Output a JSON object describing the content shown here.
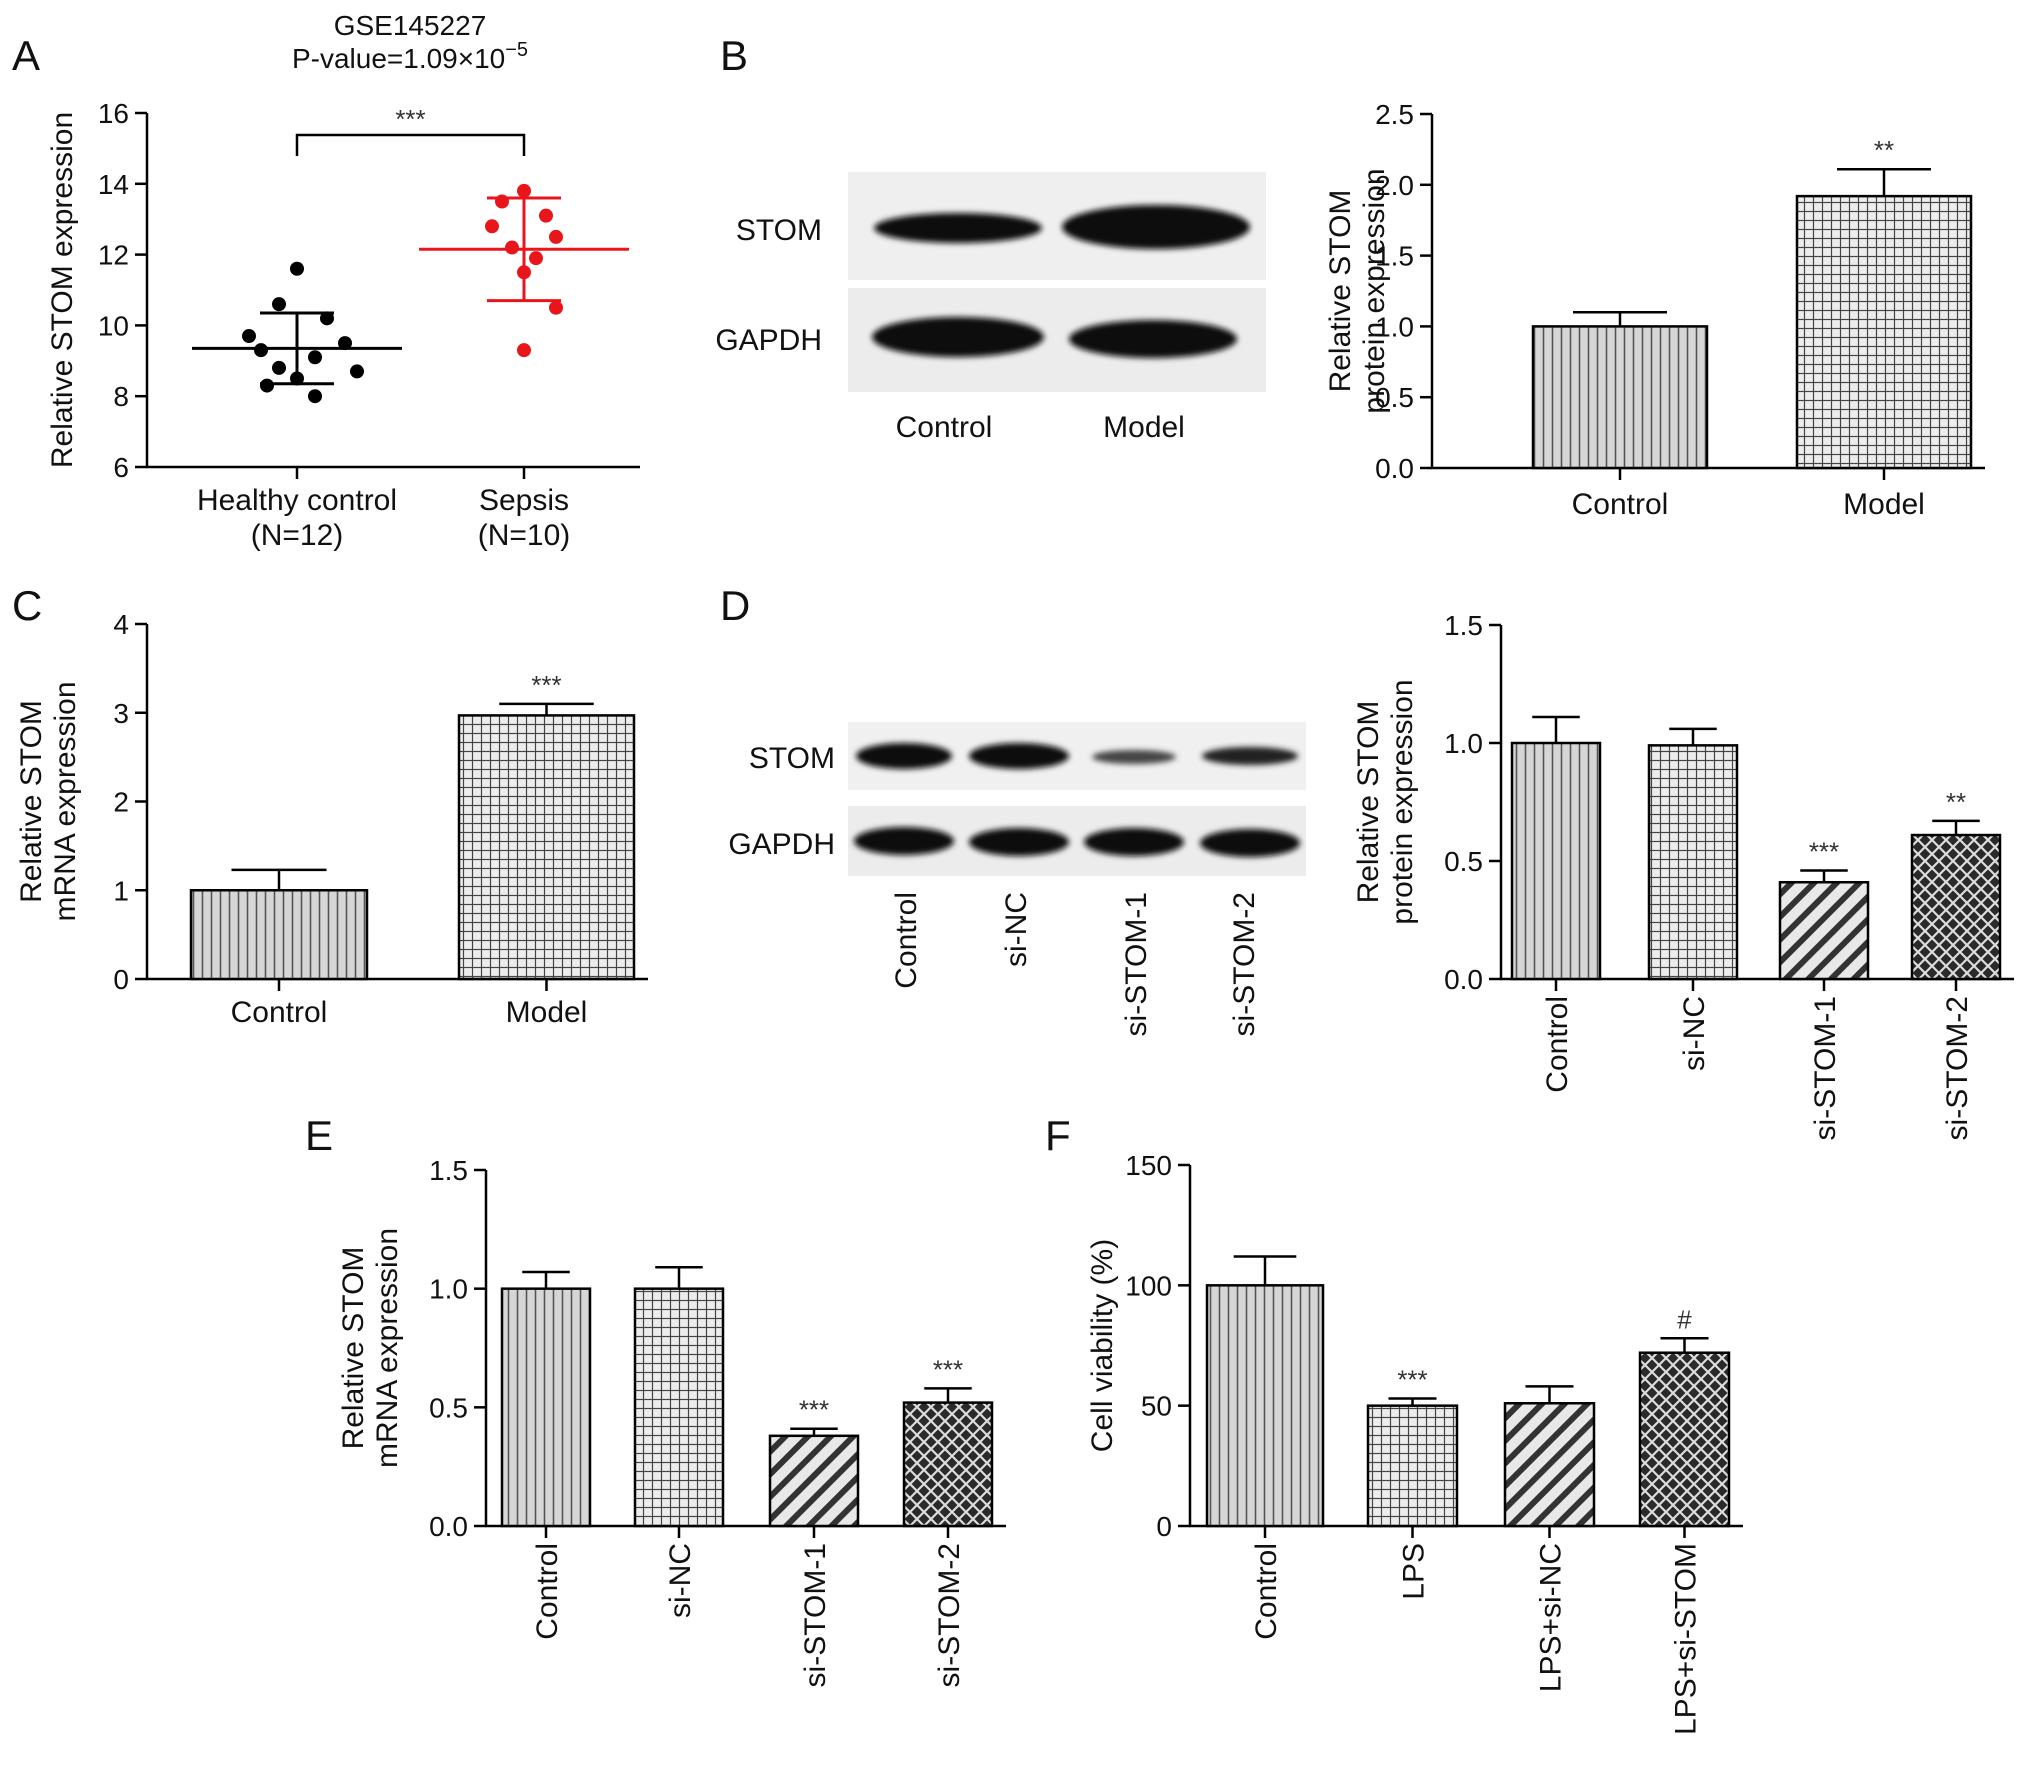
{
  "panels": {
    "A": {
      "label": "A"
    },
    "B": {
      "label": "B"
    },
    "C": {
      "label": "C"
    },
    "D": {
      "label": "D"
    },
    "E": {
      "label": "E"
    },
    "F": {
      "label": "F"
    }
  },
  "blots": {
    "B": {
      "rows": [
        "STOM",
        "GAPDH"
      ],
      "lanes": [
        "Control",
        "Model"
      ]
    },
    "D": {
      "rows": [
        "STOM",
        "GAPDH"
      ],
      "lanes": [
        "Control",
        "si-NC",
        "si-STOM-1",
        "si-STOM-2"
      ]
    }
  },
  "chart_data": [
    {
      "panel": "A",
      "type": "scatter",
      "title": "GSE145227",
      "subtitle_prefix": "P-value=1.09×10",
      "subtitle_exp": "−5",
      "ylabel": "Relative STOM expression",
      "ylim": [
        6,
        16
      ],
      "yticks": [
        6,
        8,
        10,
        12,
        14,
        16
      ],
      "categories": [
        [
          "Healthy control",
          "(N=12)"
        ],
        [
          "Sepsis",
          "(N=10)"
        ]
      ],
      "series": [
        {
          "color": "#000000",
          "values": [
            11.6,
            10.6,
            10.2,
            9.7,
            9.5,
            9.3,
            9.1,
            8.8,
            8.7,
            8.5,
            8.3,
            8.0
          ],
          "mean": 9.35,
          "sd_low": 8.35,
          "sd_high": 10.35
        },
        {
          "color": "#e8161b",
          "values": [
            13.8,
            13.5,
            13.1,
            12.8,
            12.5,
            12.2,
            11.9,
            11.5,
            10.5,
            9.3
          ],
          "mean": 12.15,
          "sd_low": 10.7,
          "sd_high": 13.6
        }
      ],
      "significance": "***",
      "grid": false
    },
    {
      "panel": "B",
      "type": "bar",
      "ylabel": [
        "Relative STOM",
        "protein expression"
      ],
      "ylim": [
        0,
        2.5
      ],
      "yticks": [
        "0.0",
        "0.5",
        "1.0",
        "1.5",
        "2.0",
        "2.5"
      ],
      "categories": [
        "Control",
        "Model"
      ],
      "values": [
        1.0,
        1.92
      ],
      "errors": [
        0.1,
        0.19
      ],
      "significance": [
        "",
        "**"
      ],
      "patterns": [
        "vlines",
        "grid"
      ],
      "grid": false
    },
    {
      "panel": "C",
      "type": "bar",
      "ylabel": [
        "Relative STOM",
        "mRNA expression"
      ],
      "ylim": [
        0,
        4
      ],
      "yticks": [
        "0",
        "1",
        "2",
        "3",
        "4"
      ],
      "categories": [
        "Control",
        "Model"
      ],
      "values": [
        1.0,
        2.97
      ],
      "errors": [
        0.23,
        0.13
      ],
      "significance": [
        "",
        "***"
      ],
      "patterns": [
        "vlines",
        "grid"
      ],
      "grid": false
    },
    {
      "panel": "D",
      "type": "bar",
      "ylabel": [
        "Relative STOM",
        "protein expression"
      ],
      "ylim": [
        0,
        1.5
      ],
      "yticks": [
        "0.0",
        "0.5",
        "1.0",
        "1.5"
      ],
      "categories": [
        "Control",
        "si-NC",
        "si-STOM-1",
        "si-STOM-2"
      ],
      "values": [
        1.0,
        0.99,
        0.41,
        0.61
      ],
      "errors": [
        0.11,
        0.07,
        0.05,
        0.06
      ],
      "significance": [
        "",
        "",
        "***",
        "**"
      ],
      "patterns": [
        "vlines",
        "grid",
        "diag",
        "cross"
      ],
      "grid": false
    },
    {
      "panel": "E",
      "type": "bar",
      "ylabel": [
        "Relative STOM",
        "mRNA expression"
      ],
      "ylim": [
        0,
        1.5
      ],
      "yticks": [
        "0.0",
        "0.5",
        "1.0",
        "1.5"
      ],
      "categories": [
        "Control",
        "si-NC",
        "si-STOM-1",
        "si-STOM-2"
      ],
      "values": [
        1.0,
        1.0,
        0.38,
        0.52
      ],
      "errors": [
        0.07,
        0.09,
        0.03,
        0.06
      ],
      "significance": [
        "",
        "",
        "***",
        "***"
      ],
      "patterns": [
        "vlines",
        "grid",
        "diag",
        "cross"
      ],
      "grid": false
    },
    {
      "panel": "F",
      "type": "bar",
      "ylabel": [
        "Cell viability (%)"
      ],
      "ylim": [
        0,
        150
      ],
      "yticks": [
        "0",
        "50",
        "100",
        "150"
      ],
      "categories": [
        "Control",
        "LPS",
        "LPS+si-NC",
        "LPS+si-STOM"
      ],
      "values": [
        100,
        50,
        51,
        72
      ],
      "errors": [
        12,
        3,
        7,
        6
      ],
      "significance": [
        "",
        "***",
        "",
        "#"
      ],
      "patterns": [
        "vlines",
        "grid",
        "diag",
        "cross"
      ],
      "grid": false
    }
  ]
}
